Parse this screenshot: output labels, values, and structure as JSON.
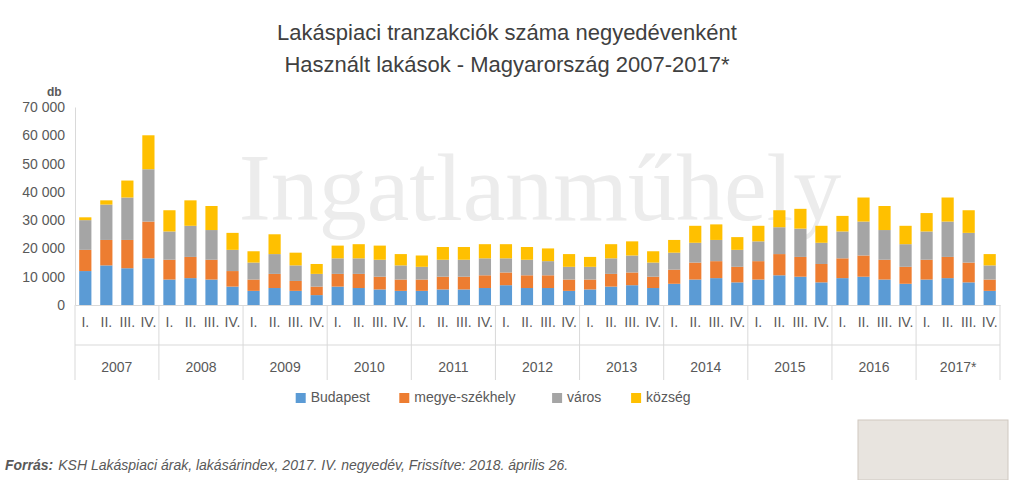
{
  "chart_data": {
    "type": "bar",
    "stacked": true,
    "grid": false,
    "legend": "bottom",
    "title": "Lakáspiaci tranzakciók száma negyedévenként",
    "subtitle": "Használt lakások - Magyarország 2007-2017*",
    "y_label": "db",
    "watermark": "Ingatlanműhely",
    "source_label": "Forrás:",
    "source": "KSH Lakáspiaci árak, lakásárindex, 2017. IV. negyedév, Frissítve: 2018. április 26.",
    "category_groups": [
      "2007",
      "2008",
      "2009",
      "2010",
      "2011",
      "2012",
      "2013",
      "2014",
      "2015",
      "2016",
      "2017*"
    ],
    "categories": [
      "I.",
      "II.",
      "III.",
      "IV.",
      "I.",
      "II.",
      "III.",
      "IV.",
      "I.",
      "II.",
      "III.",
      "IV.",
      "I.",
      "II.",
      "III.",
      "IV.",
      "I.",
      "II.",
      "III.",
      "IV.",
      "I.",
      "II.",
      "III.",
      "IV.",
      "I.",
      "II.",
      "III.",
      "IV.",
      "I.",
      "II.",
      "III.",
      "IV.",
      "I.",
      "II.",
      "III.",
      "IV.",
      "I.",
      "II.",
      "III.",
      "IV.",
      "I.",
      "II.",
      "III.",
      "IV."
    ],
    "ylim": [
      0,
      70000
    ],
    "yticks": [
      0,
      {
        "value": 10000,
        "label": "10 000"
      },
      {
        "value": 20000,
        "label": "20 000"
      },
      {
        "value": 30000,
        "label": "30 000"
      },
      {
        "value": 40000,
        "label": "40 000"
      },
      {
        "value": 50000,
        "label": "50 000"
      },
      {
        "value": 60000,
        "label": "60 000"
      },
      {
        "value": 70000,
        "label": "70 000"
      }
    ],
    "series": [
      {
        "name": "Budapest",
        "color": "#5b9bd5",
        "values": [
          12000,
          14000,
          13000,
          16500,
          9000,
          9500,
          9000,
          6500,
          5000,
          6000,
          5000,
          3500,
          6500,
          6000,
          5500,
          5000,
          5000,
          5500,
          5500,
          6000,
          7000,
          6000,
          6000,
          5000,
          5500,
          6500,
          7000,
          6000,
          7500,
          9000,
          9500,
          8000,
          9000,
          10500,
          10000,
          8000,
          9500,
          10000,
          9000,
          7500,
          9000,
          9500,
          8000,
          5000
        ]
      },
      {
        "name": "megye-székhely",
        "color": "#ed7d31",
        "values": [
          7500,
          9000,
          10000,
          13000,
          7000,
          7500,
          7000,
          5500,
          4000,
          5000,
          3500,
          3000,
          4500,
          5000,
          4500,
          4000,
          4000,
          4500,
          4500,
          4500,
          4500,
          4500,
          4500,
          4000,
          3500,
          4500,
          4500,
          4000,
          5000,
          6000,
          6000,
          5500,
          6500,
          7500,
          7000,
          6500,
          7000,
          7500,
          7000,
          6000,
          7000,
          7500,
          7000,
          4000
        ]
      },
      {
        "name": "város",
        "color": "#a5a5a5",
        "values": [
          10500,
          12500,
          15000,
          18500,
          10000,
          11000,
          10500,
          7500,
          6000,
          7000,
          5500,
          4500,
          5500,
          5500,
          6000,
          5000,
          4500,
          6000,
          6000,
          6000,
          5000,
          5500,
          5000,
          4500,
          4500,
          5500,
          6000,
          5000,
          6000,
          7000,
          7500,
          6000,
          7000,
          9500,
          10000,
          7500,
          9500,
          12000,
          10500,
          8000,
          10000,
          12500,
          10500,
          5000
        ]
      },
      {
        "name": "község",
        "color": "#ffc000",
        "values": [
          1000,
          1500,
          6000,
          12000,
          7500,
          9000,
          8500,
          6000,
          4000,
          7000,
          4500,
          3500,
          4500,
          5000,
          5000,
          4000,
          4000,
          4500,
          4500,
          5000,
          5000,
          4500,
          4500,
          4500,
          3500,
          5000,
          5000,
          4000,
          4500,
          6000,
          5500,
          4500,
          5500,
          6000,
          7000,
          6000,
          5500,
          8500,
          8500,
          6500,
          6500,
          8500,
          8000,
          4000
        ]
      }
    ]
  }
}
